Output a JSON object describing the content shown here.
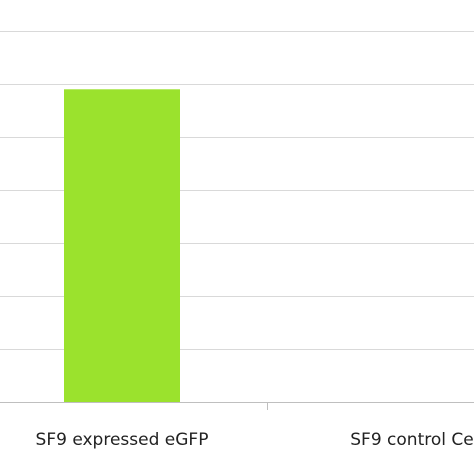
{
  "chart_data": {
    "type": "bar",
    "categories": [
      "SF9 expressed eGFP",
      "SF9 control Ce"
    ],
    "values": [
      5.9,
      0
    ],
    "color": "#9be22d",
    "ylim": [
      0,
      7
    ],
    "yticks": [
      0,
      1,
      2,
      3,
      4,
      5,
      6,
      7
    ],
    "grid": true
  }
}
